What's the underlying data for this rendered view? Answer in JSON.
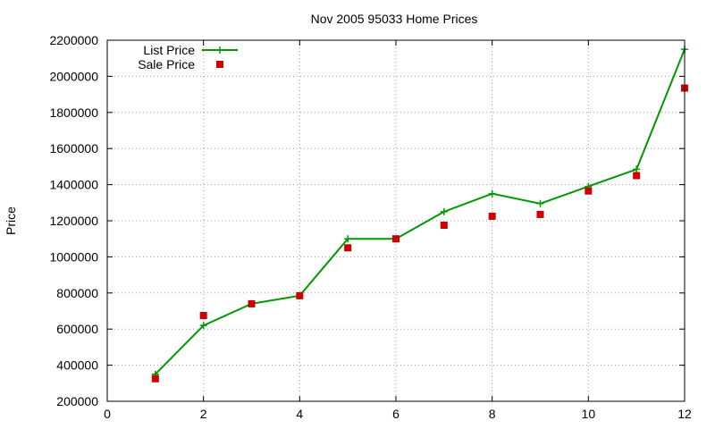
{
  "chart_data": {
    "type": "line",
    "title": "Nov 2005 95033 Home Prices",
    "xlabel": "",
    "ylabel": "Price",
    "xlim": [
      0,
      12
    ],
    "ylim": [
      200000,
      2200000
    ],
    "xticks": [
      0,
      2,
      4,
      6,
      8,
      10,
      12
    ],
    "yticks": [
      200000,
      400000,
      600000,
      800000,
      1000000,
      1200000,
      1400000,
      1600000,
      1800000,
      2000000,
      2200000
    ],
    "grid": true,
    "legend": "top-left",
    "series": [
      {
        "name": "List Price",
        "style": "line+cross",
        "color": "#009900",
        "x": [
          1,
          2,
          3,
          4,
          5,
          6,
          7,
          8,
          9,
          10,
          11,
          12
        ],
        "y": [
          350000,
          620000,
          740000,
          785000,
          1100000,
          1100000,
          1250000,
          1350000,
          1295000,
          1390000,
          1485000,
          2150000
        ]
      },
      {
        "name": "Sale Price",
        "style": "square",
        "color": "#cc0000",
        "x": [
          1,
          2,
          3,
          4,
          5,
          6,
          7,
          8,
          9,
          10,
          11,
          12
        ],
        "y": [
          325000,
          675000,
          740000,
          785000,
          1050000,
          1100000,
          1175000,
          1225000,
          1235000,
          1365000,
          1450000,
          1935000
        ]
      }
    ]
  }
}
